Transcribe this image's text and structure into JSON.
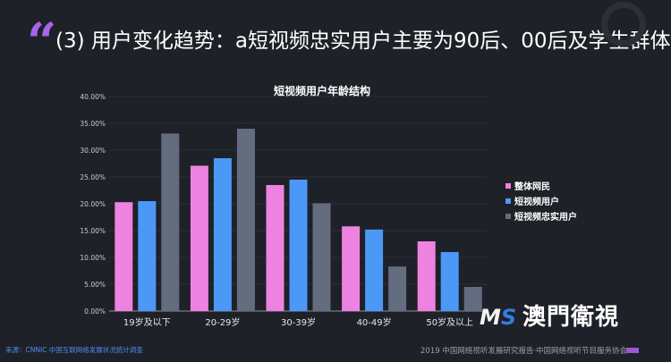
{
  "headline": "(3) 用户变化趋势：a短视频忠实用户主要为90后、00后及学生群体",
  "quote_glyph": "“",
  "source": "来源：CNNIC 中国互联网络发展状况统计调查",
  "footer": "2019 中国网络视听发展研究报告·中国网络视听节目服务协会",
  "watermark": {
    "logo_m": "M",
    "logo_s": "S",
    "text": "澳門衛視"
  },
  "colors": {
    "background": "#1e2128",
    "series": [
      "#ee82e0",
      "#4c98f6",
      "#646c80"
    ],
    "accent": "#a865e8"
  },
  "chart_data": {
    "type": "bar",
    "title": "短视频用户年龄结构",
    "categories": [
      "19岁及以下",
      "20-29岁",
      "30-39岁",
      "40-49岁",
      "50岁及以上"
    ],
    "series": [
      {
        "name": "整体网民",
        "values": [
          20.3,
          27.1,
          23.5,
          15.8,
          13.0
        ]
      },
      {
        "name": "短视频用户",
        "values": [
          20.5,
          28.5,
          24.5,
          15.2,
          11.0
        ]
      },
      {
        "name": "短视频忠实用户",
        "values": [
          33.1,
          34.0,
          20.1,
          8.3,
          4.5
        ]
      }
    ],
    "yticks": [
      "0.00%",
      "5.00%",
      "10.00%",
      "15.00%",
      "20.00%",
      "25.00%",
      "30.00%",
      "35.00%",
      "40.00%"
    ],
    "ylim": [
      0,
      40
    ],
    "legend_position": "right"
  }
}
